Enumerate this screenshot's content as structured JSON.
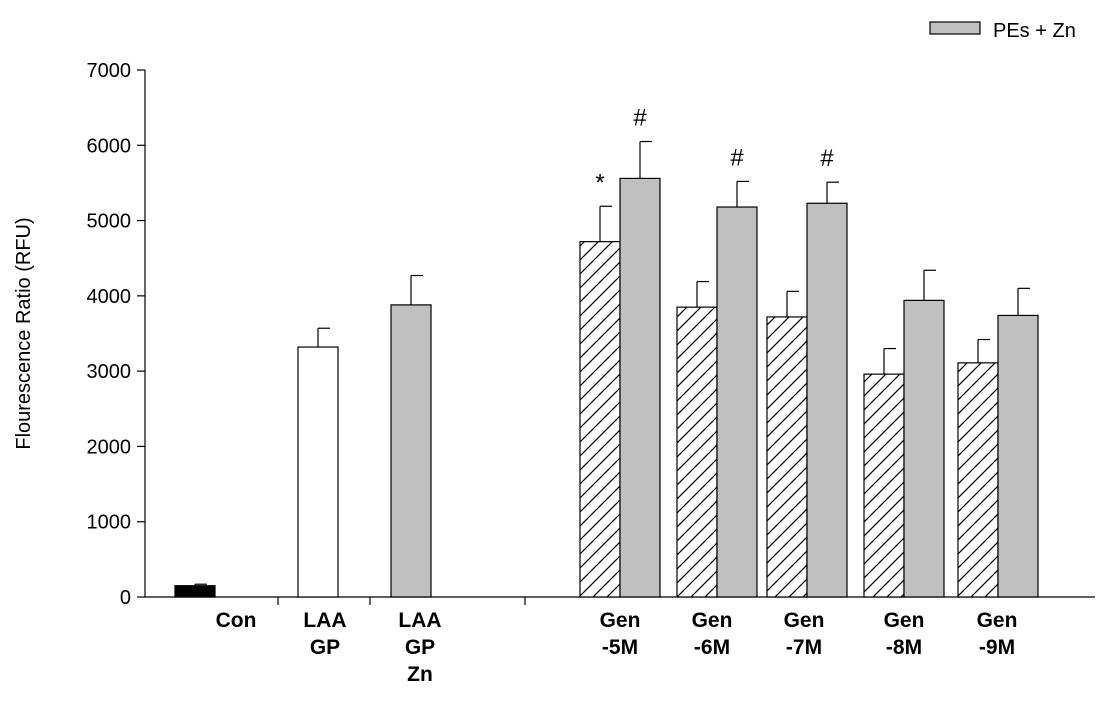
{
  "chart_data": {
    "type": "bar",
    "ylabel": "Flourescence Ratio (RFU)",
    "xlabel": "",
    "ylim": [
      0,
      7000
    ],
    "yticks": [
      0,
      1000,
      2000,
      3000,
      4000,
      5000,
      6000,
      7000
    ],
    "legend": {
      "position": "top-right",
      "entries": [
        {
          "label": "PEs + Zn",
          "color": "#c0c0c0"
        }
      ]
    },
    "groups": [
      {
        "label_lines": [
          "Con"
        ],
        "bars": [
          {
            "value": 150,
            "error": 20,
            "fill": "black",
            "annotation": ""
          }
        ]
      },
      {
        "label_lines": [
          "LAA",
          "GP"
        ],
        "bars": [
          {
            "value": 3320,
            "error": 250,
            "fill": "white",
            "annotation": ""
          }
        ]
      },
      {
        "label_lines": [
          "LAA",
          "GP",
          "Zn"
        ],
        "bars": [
          {
            "value": 3880,
            "error": 390,
            "fill": "gray",
            "annotation": ""
          }
        ]
      },
      {
        "label_lines": [
          "Gen",
          "-5M"
        ],
        "bars": [
          {
            "value": 4720,
            "error": 470,
            "fill": "hatch",
            "annotation": "*"
          },
          {
            "value": 5560,
            "error": 490,
            "fill": "gray",
            "annotation": "#"
          }
        ]
      },
      {
        "label_lines": [
          "Gen",
          "-6M"
        ],
        "bars": [
          {
            "value": 3850,
            "error": 340,
            "fill": "hatch",
            "annotation": ""
          },
          {
            "value": 5180,
            "error": 340,
            "fill": "gray",
            "annotation": "#"
          }
        ]
      },
      {
        "label_lines": [
          "Gen",
          "-7M"
        ],
        "bars": [
          {
            "value": 3720,
            "error": 340,
            "fill": "hatch",
            "annotation": ""
          },
          {
            "value": 5230,
            "error": 280,
            "fill": "gray",
            "annotation": "#"
          }
        ]
      },
      {
        "label_lines": [
          "Gen",
          "-8M"
        ],
        "bars": [
          {
            "value": 2960,
            "error": 340,
            "fill": "hatch",
            "annotation": ""
          },
          {
            "value": 3940,
            "error": 400,
            "fill": "gray",
            "annotation": ""
          }
        ]
      },
      {
        "label_lines": [
          "Gen",
          "-9M"
        ],
        "bars": [
          {
            "value": 3110,
            "error": 310,
            "fill": "hatch",
            "annotation": ""
          },
          {
            "value": 3740,
            "error": 360,
            "fill": "gray",
            "annotation": ""
          }
        ]
      }
    ]
  }
}
